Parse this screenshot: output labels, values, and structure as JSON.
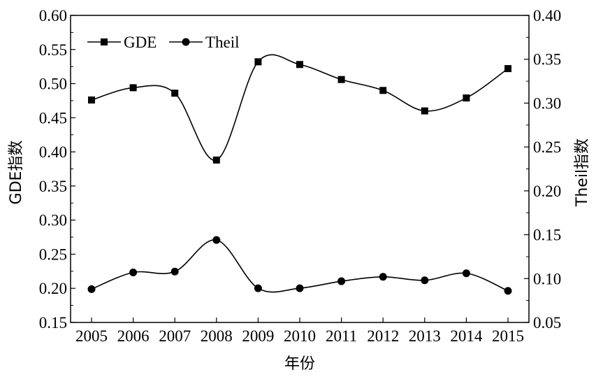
{
  "chart_data": {
    "type": "line",
    "x": [
      "2005",
      "2006",
      "2007",
      "2008",
      "2009",
      "2010",
      "2011",
      "2012",
      "2013",
      "2014",
      "2015"
    ],
    "xlabel": "年份",
    "ylabel": "GDE指数",
    "y2label": "Theil指数",
    "ylim": [
      0.15,
      0.6
    ],
    "y2lim": [
      0.05,
      0.4
    ],
    "yticks": [
      "0.15",
      "0.20",
      "0.25",
      "0.30",
      "0.35",
      "0.40",
      "0.45",
      "0.50",
      "0.55",
      "0.60"
    ],
    "y2ticks": [
      "0.05",
      "0.10",
      "0.15",
      "0.20",
      "0.25",
      "0.30",
      "0.35",
      "0.40"
    ],
    "grid": false,
    "legend_position": "top-left",
    "series": [
      {
        "name": "GDE",
        "axis": "left",
        "marker": "square",
        "values": [
          0.476,
          0.494,
          0.486,
          0.388,
          0.532,
          0.528,
          0.506,
          0.49,
          0.46,
          0.479,
          0.522
        ]
      },
      {
        "name": "Theil",
        "axis": "right",
        "marker": "circle",
        "values": [
          0.088,
          0.107,
          0.108,
          0.144,
          0.089,
          0.089,
          0.097,
          0.102,
          0.098,
          0.106,
          0.086
        ]
      }
    ]
  }
}
